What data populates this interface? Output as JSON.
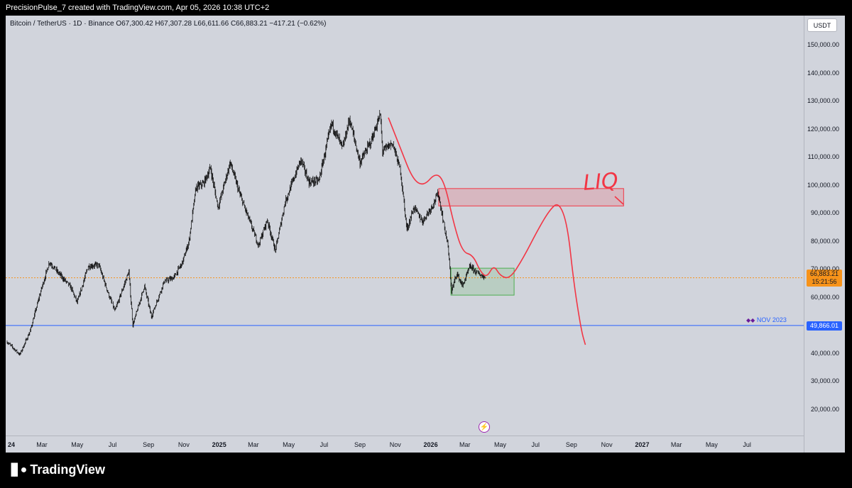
{
  "caption": "PrecisionPulse_7 created with TradingView.com, Apr 05, 2026 10:38 UTC+2",
  "symbol_line": "Bitcoin / TetherUS · 1D · Binance  O67,300.42  H67,307.28  L66,611.66  C66,883.21  −417.21 (−0.62%)",
  "currency_button": "USDT",
  "last_price": "66,883.21",
  "countdown": "15:21:56",
  "level_price": "49,866.01",
  "level_tag": "NOV 2023",
  "annotation_text": "LIQ",
  "footer_brand": "TradingView",
  "colors": {
    "plot_background": "#d1d4dc",
    "candles": "#000000",
    "last_price_line": "#f7931a",
    "level_line": "#2962ff",
    "drawing": "#f23645",
    "supply_zone": "#f23645",
    "demand_zone": "#4caf50"
  },
  "icons": {
    "event": "lightning-icon",
    "brand": "tradingview-logo-icon",
    "tag": "flag-icon"
  },
  "price_ticks": [
    "150,000.00",
    "140,000.00",
    "130,000.00",
    "120,000.00",
    "110,000.00",
    "100,000.00",
    "90,000.00",
    "80,000.00",
    "70,000.00",
    "60,000.00",
    "40,000.00",
    "30,000.00",
    "20,000.00"
  ],
  "time_ticks": [
    {
      "label": "24",
      "bold": true
    },
    {
      "label": "Mar"
    },
    {
      "label": "May"
    },
    {
      "label": "Jul"
    },
    {
      "label": "Sep"
    },
    {
      "label": "Nov"
    },
    {
      "label": "2025",
      "bold": true
    },
    {
      "label": "Mar"
    },
    {
      "label": "May"
    },
    {
      "label": "Jul"
    },
    {
      "label": "Sep"
    },
    {
      "label": "Nov"
    },
    {
      "label": "2026",
      "bold": true
    },
    {
      "label": "Mar"
    },
    {
      "label": "May"
    },
    {
      "label": "Jul"
    },
    {
      "label": "Sep"
    },
    {
      "label": "Nov"
    },
    {
      "label": "2027",
      "bold": true
    },
    {
      "label": "Mar"
    },
    {
      "label": "May"
    },
    {
      "label": "Jul"
    }
  ],
  "chart_data": {
    "type": "candlestick",
    "title": "Bitcoin / TetherUS · 1D · Binance",
    "y_axis": {
      "unit": "USDT",
      "range": [
        10000,
        157000
      ],
      "scale": "linear"
    },
    "x_axis": {
      "range": [
        "2024-01-01",
        "2027-08-31"
      ]
    },
    "grid": false,
    "ohlc_last": {
      "open": 67300.42,
      "high": 67307.28,
      "low": 66611.66,
      "close": 66883.21,
      "change": -417.21,
      "change_pct": -0.62
    },
    "price_path": [
      {
        "date": "2024-01-01",
        "close": 44000
      },
      {
        "date": "2024-01-23",
        "close": 39500
      },
      {
        "date": "2024-02-10",
        "close": 48000
      },
      {
        "date": "2024-02-28",
        "close": 62000
      },
      {
        "date": "2024-03-14",
        "close": 72500
      },
      {
        "date": "2024-04-01",
        "close": 68000
      },
      {
        "date": "2024-04-20",
        "close": 63500
      },
      {
        "date": "2024-05-01",
        "close": 58000
      },
      {
        "date": "2024-05-20",
        "close": 71000
      },
      {
        "date": "2024-06-07",
        "close": 71500
      },
      {
        "date": "2024-06-25",
        "close": 60500
      },
      {
        "date": "2024-07-05",
        "close": 55000
      },
      {
        "date": "2024-07-29",
        "close": 69000
      },
      {
        "date": "2024-08-05",
        "close": 50000
      },
      {
        "date": "2024-08-25",
        "close": 64000
      },
      {
        "date": "2024-09-06",
        "close": 53000
      },
      {
        "date": "2024-09-28",
        "close": 65500
      },
      {
        "date": "2024-10-15",
        "close": 67000
      },
      {
        "date": "2024-10-30",
        "close": 72500
      },
      {
        "date": "2024-11-10",
        "close": 80000
      },
      {
        "date": "2024-11-22",
        "close": 99000
      },
      {
        "date": "2024-12-05",
        "close": 100500
      },
      {
        "date": "2024-12-17",
        "close": 106000
      },
      {
        "date": "2024-12-30",
        "close": 92000
      },
      {
        "date": "2025-01-20",
        "close": 108000
      },
      {
        "date": "2025-02-05",
        "close": 97000
      },
      {
        "date": "2025-02-28",
        "close": 84000
      },
      {
        "date": "2025-03-10",
        "close": 78500
      },
      {
        "date": "2025-03-25",
        "close": 87500
      },
      {
        "date": "2025-04-08",
        "close": 76500
      },
      {
        "date": "2025-04-25",
        "close": 94000
      },
      {
        "date": "2025-05-22",
        "close": 109000
      },
      {
        "date": "2025-06-05",
        "close": 101000
      },
      {
        "date": "2025-06-22",
        "close": 101500
      },
      {
        "date": "2025-07-14",
        "close": 122000
      },
      {
        "date": "2025-08-02",
        "close": 113000
      },
      {
        "date": "2025-08-14",
        "close": 123500
      },
      {
        "date": "2025-09-01",
        "close": 108000
      },
      {
        "date": "2025-09-20",
        "close": 115500
      },
      {
        "date": "2025-10-06",
        "close": 125000
      },
      {
        "date": "2025-10-10",
        "close": 112000
      },
      {
        "date": "2025-10-27",
        "close": 115000
      },
      {
        "date": "2025-11-10",
        "close": 105000
      },
      {
        "date": "2025-11-21",
        "close": 84000
      },
      {
        "date": "2025-12-03",
        "close": 92000
      },
      {
        "date": "2025-12-18",
        "close": 87000
      },
      {
        "date": "2026-01-05",
        "close": 93000
      },
      {
        "date": "2026-01-14",
        "close": 97000
      },
      {
        "date": "2026-01-31",
        "close": 78000
      },
      {
        "date": "2026-02-06",
        "close": 62000
      },
      {
        "date": "2026-02-15",
        "close": 68500
      },
      {
        "date": "2026-02-25",
        "close": 64000
      },
      {
        "date": "2026-03-10",
        "close": 71000
      },
      {
        "date": "2026-03-20",
        "close": 69000
      },
      {
        "date": "2026-04-05",
        "close": 66883.21
      }
    ],
    "horizontal_lines": [
      {
        "price": 66883.21,
        "label": "66,883.21",
        "style": "dotted",
        "color": "#f7931a"
      },
      {
        "price": 49866.01,
        "label": "49,866.01",
        "tag": "NOV 2023",
        "color": "#2962ff"
      }
    ],
    "zones": [
      {
        "name": "supply",
        "from": "2026-01-15",
        "to": "2026-11-30",
        "low": 92500,
        "high": 98700,
        "color": "#f23645"
      },
      {
        "name": "demand",
        "from": "2026-02-05",
        "to": "2026-05-25",
        "low": 60700,
        "high": 70300,
        "color": "#4caf50"
      }
    ],
    "drawn_projection": [
      {
        "date": "2025-10-20",
        "price": 124000
      },
      {
        "date": "2025-11-10",
        "price": 113000
      },
      {
        "date": "2025-12-01",
        "price": 102000
      },
      {
        "date": "2025-12-20",
        "price": 99500
      },
      {
        "date": "2026-01-10",
        "price": 104500
      },
      {
        "date": "2026-01-25",
        "price": 101000
      },
      {
        "date": "2026-02-10",
        "price": 86000
      },
      {
        "date": "2026-02-25",
        "price": 76000
      },
      {
        "date": "2026-03-15",
        "price": 75000
      },
      {
        "date": "2026-03-28",
        "price": 69000
      },
      {
        "date": "2026-04-08",
        "price": 67000
      },
      {
        "date": "2026-04-20",
        "price": 71500
      },
      {
        "date": "2026-05-01",
        "price": 67500
      },
      {
        "date": "2026-05-18",
        "price": 66500
      },
      {
        "date": "2026-06-10",
        "price": 74000
      },
      {
        "date": "2026-07-05",
        "price": 84000
      },
      {
        "date": "2026-07-25",
        "price": 91000
      },
      {
        "date": "2026-08-10",
        "price": 94000
      },
      {
        "date": "2026-08-25",
        "price": 86000
      },
      {
        "date": "2026-09-05",
        "price": 65000
      },
      {
        "date": "2026-09-18",
        "price": 48000
      },
      {
        "date": "2026-09-25",
        "price": 43000
      }
    ]
  }
}
